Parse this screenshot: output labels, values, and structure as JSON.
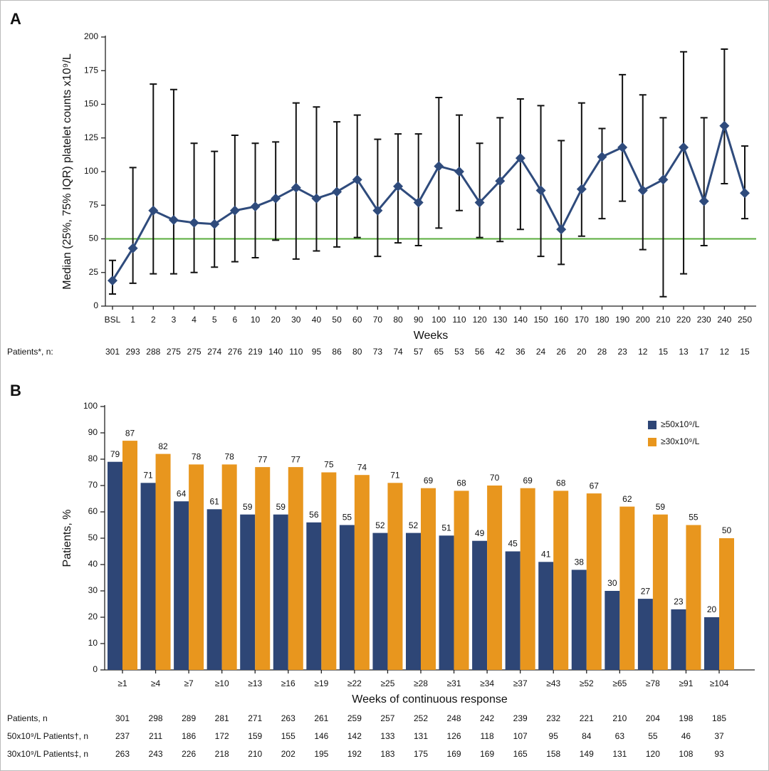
{
  "chart_data": [
    {
      "type": "line",
      "panel": "A",
      "y_label": "Median (25%, 75% IQR) platelet counts x10⁹/L",
      "x_label": "Weeks",
      "categories": [
        "BSL",
        "1",
        "2",
        "3",
        "4",
        "5",
        "6",
        "10",
        "20",
        "30",
        "40",
        "50",
        "60",
        "70",
        "80",
        "90",
        "100",
        "110",
        "120",
        "130",
        "140",
        "150",
        "160",
        "170",
        "180",
        "190",
        "200",
        "210",
        "220",
        "230",
        "240",
        "250"
      ],
      "series": [
        {
          "color": "#2f4b7c",
          "values": [
            19,
            43,
            71,
            64,
            62,
            61,
            71,
            74,
            80,
            88,
            80,
            85,
            94,
            71,
            89,
            77,
            104,
            100,
            77,
            93,
            110,
            86,
            57,
            87,
            111,
            118,
            86,
            94,
            118,
            78,
            134,
            84
          ],
          "lower": [
            9,
            17,
            24,
            24,
            25,
            29,
            33,
            36,
            49,
            35,
            41,
            44,
            51,
            37,
            47,
            45,
            58,
            71,
            51,
            48,
            57,
            37,
            31,
            52,
            65,
            78,
            42,
            7,
            24,
            45,
            91,
            65
          ],
          "upper": [
            34,
            103,
            165,
            161,
            121,
            115,
            127,
            121,
            122,
            151,
            148,
            137,
            142,
            124,
            128,
            128,
            155,
            142,
            121,
            140,
            154,
            149,
            123,
            151,
            132,
            172,
            157,
            140,
            189,
            140,
            191,
            119
          ]
        }
      ],
      "reference_line": {
        "value": 50,
        "color": "#5aac3c"
      },
      "ylim": [
        0,
        200
      ],
      "yticks": [
        0,
        25,
        50,
        75,
        100,
        125,
        150,
        175,
        200
      ],
      "patients_label": "Patients*, n:",
      "patients": [
        "301",
        "293",
        "288",
        "275",
        "275",
        "274",
        "276",
        "219",
        "140",
        "110",
        "95",
        "86",
        "80",
        "73",
        "74",
        "57",
        "65",
        "53",
        "56",
        "42",
        "36",
        "24",
        "26",
        "20",
        "28",
        "23",
        "12",
        "15",
        "13",
        "17",
        "12",
        "15"
      ]
    },
    {
      "type": "bar",
      "panel": "B",
      "y_label": "Patients, %",
      "x_label": "Weeks of continuous response",
      "categories": [
        "≥1",
        "≥4",
        "≥7",
        "≥10",
        "≥13",
        "≥16",
        "≥19",
        "≥22",
        "≥25",
        "≥28",
        "≥31",
        "≥34",
        "≥37",
        "≥43",
        "≥52",
        "≥65",
        "≥78",
        "≥91",
        "≥104"
      ],
      "series": [
        {
          "name": "≥50x10⁹/L",
          "color": "#2e4676",
          "values": [
            79,
            71,
            64,
            61,
            59,
            59,
            56,
            55,
            52,
            52,
            51,
            49,
            45,
            41,
            38,
            30,
            27,
            23,
            20
          ]
        },
        {
          "name": "≥30x10⁹/L",
          "color": "#e8961e",
          "values": [
            87,
            82,
            78,
            78,
            77,
            77,
            75,
            74,
            71,
            69,
            68,
            70,
            69,
            68,
            67,
            62,
            59,
            55,
            50
          ]
        }
      ],
      "ylim": [
        0,
        100
      ],
      "yticks": [
        0,
        10,
        20,
        30,
        40,
        50,
        60,
        70,
        80,
        90,
        100
      ],
      "legend": "top-right",
      "table": [
        {
          "label": "Patients, n",
          "values": [
            "301",
            "298",
            "289",
            "281",
            "271",
            "263",
            "261",
            "259",
            "257",
            "252",
            "248",
            "242",
            "239",
            "232",
            "221",
            "210",
            "204",
            "198",
            "185"
          ]
        },
        {
          "label": "50x10⁹/L Patients†, n",
          "values": [
            "237",
            "211",
            "186",
            "172",
            "159",
            "155",
            "146",
            "142",
            "133",
            "131",
            "126",
            "118",
            "107",
            "95",
            "84",
            "63",
            "55",
            "46",
            "37"
          ]
        },
        {
          "label": "30x10⁹/L Patients‡, n",
          "values": [
            "263",
            "243",
            "226",
            "218",
            "210",
            "202",
            "195",
            "192",
            "183",
            "175",
            "169",
            "169",
            "165",
            "158",
            "149",
            "131",
            "120",
            "108",
            "93"
          ]
        }
      ]
    }
  ]
}
